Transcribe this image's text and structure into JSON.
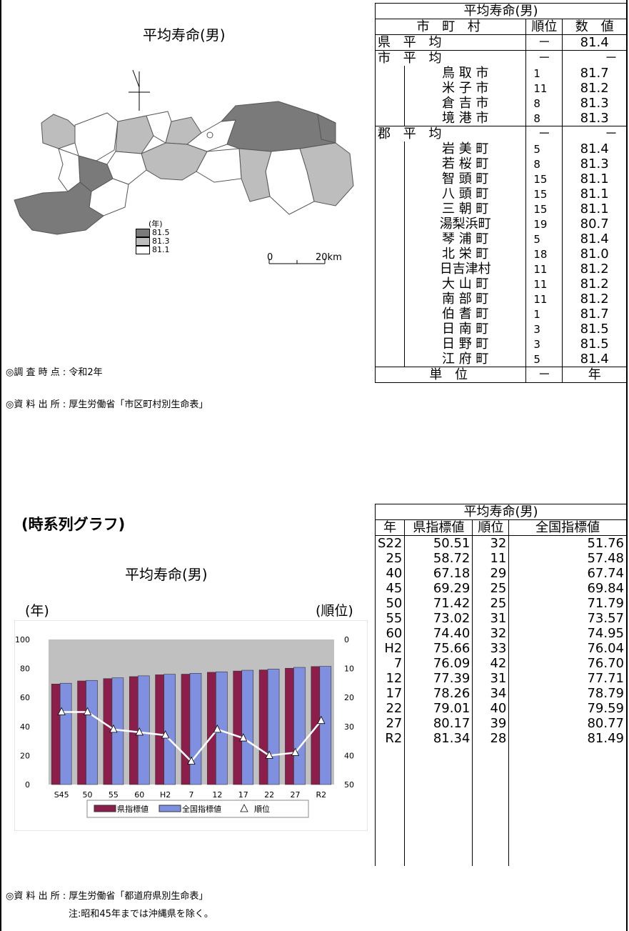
{
  "map_section": {
    "title": "平均寿命(男)",
    "legend_unit": "(年)",
    "legend": [
      {
        "label": "81.5",
        "color": "#7a7a7a"
      },
      {
        "label": "81.3",
        "color": "#bdbdbd"
      },
      {
        "label": "81.1",
        "color": "#ffffff"
      }
    ],
    "scale_zero": "0",
    "scale_km": "20km",
    "survey_label": "◎調 査 時 点 : 令和2年",
    "source_label": "◎資 料 出 所 : 厚生労働省「市区町村別生命表」"
  },
  "table1": {
    "title": "平均寿命(男)",
    "headers": [
      "市 町 村",
      "順位",
      "数　値"
    ],
    "pref_avg": {
      "label": "県 平 均",
      "rank": "－",
      "value": "81.4"
    },
    "city_avg": {
      "label": "市 平 均",
      "rank": "－",
      "value": "－"
    },
    "cities": [
      {
        "name": "鳥 取 市",
        "rank": "1",
        "value": "81.7"
      },
      {
        "name": "米 子 市",
        "rank": "11",
        "value": "81.2"
      },
      {
        "name": "倉 吉 市",
        "rank": "8",
        "value": "81.3"
      },
      {
        "name": "境 港 市",
        "rank": "8",
        "value": "81.3"
      }
    ],
    "county_avg": {
      "label": "郡 平 均",
      "rank": "－",
      "value": "－"
    },
    "towns": [
      {
        "name": "岩 美 町",
        "rank": "5",
        "value": "81.4"
      },
      {
        "name": "若 桜 町",
        "rank": "8",
        "value": "81.3"
      },
      {
        "name": "智 頭 町",
        "rank": "15",
        "value": "81.1"
      },
      {
        "name": "八 頭 町",
        "rank": "15",
        "value": "81.1"
      },
      {
        "name": "三 朝 町",
        "rank": "15",
        "value": "81.1"
      },
      {
        "name": "湯梨浜町",
        "rank": "19",
        "value": "80.7"
      },
      {
        "name": "琴 浦 町",
        "rank": "5",
        "value": "81.4"
      },
      {
        "name": "北 栄 町",
        "rank": "18",
        "value": "81.0"
      },
      {
        "name": "日吉津村",
        "rank": "11",
        "value": "81.2"
      },
      {
        "name": "大 山 町",
        "rank": "11",
        "value": "81.2"
      },
      {
        "name": "南 部 町",
        "rank": "11",
        "value": "81.2"
      },
      {
        "name": "伯 耆 町",
        "rank": "1",
        "value": "81.7"
      },
      {
        "name": "日 南 町",
        "rank": "3",
        "value": "81.5"
      },
      {
        "name": "日 野 町",
        "rank": "3",
        "value": "81.5"
      },
      {
        "name": "江 府 町",
        "rank": "5",
        "value": "81.4"
      }
    ],
    "unit": {
      "label": "単 位",
      "rank": "－",
      "value": "年"
    }
  },
  "ts_section": {
    "heading": "(時系列グラフ)",
    "chart_title": "平均寿命(男)",
    "left_unit": "(年)",
    "right_unit": "(順位)",
    "source_label": "◎資 料 出 所 : 厚生労働省「都道府県別生命表」",
    "note_label": "注:昭和45年までは沖縄県を除く。"
  },
  "table2": {
    "title": "平均寿命(男)",
    "headers": [
      "年",
      "県指標値",
      "順位",
      "全国指標値"
    ],
    "rows": [
      [
        "S22",
        "50.51",
        "32",
        "51.76"
      ],
      [
        "25",
        "58.72",
        "11",
        "57.48"
      ],
      [
        "40",
        "67.18",
        "29",
        "67.74"
      ],
      [
        "45",
        "69.29",
        "25",
        "69.84"
      ],
      [
        "50",
        "71.42",
        "25",
        "71.79"
      ],
      [
        "55",
        "73.02",
        "31",
        "73.57"
      ],
      [
        "60",
        "74.40",
        "32",
        "74.95"
      ],
      [
        "H2",
        "75.66",
        "33",
        "76.04"
      ],
      [
        "7",
        "76.09",
        "42",
        "76.70"
      ],
      [
        "12",
        "77.39",
        "31",
        "77.71"
      ],
      [
        "17",
        "78.26",
        "34",
        "78.79"
      ],
      [
        "22",
        "79.01",
        "40",
        "79.59"
      ],
      [
        "27",
        "80.17",
        "39",
        "80.77"
      ],
      [
        "R2",
        "81.34",
        "28",
        "81.49"
      ]
    ]
  },
  "colors": {
    "pref_bar": "#8b1e4a",
    "nat_bar": "#8090e0",
    "plot_bg": "#c0c0c0",
    "rank_line": "#ffffff"
  },
  "chart_data": {
    "type": "bar",
    "categories": [
      "S45",
      "50",
      "55",
      "60",
      "H2",
      "7",
      "12",
      "17",
      "22",
      "27",
      "R2"
    ],
    "series": [
      {
        "name": "県指標値",
        "values": [
          69.29,
          71.42,
          73.02,
          74.4,
          75.66,
          76.09,
          77.39,
          78.26,
          79.01,
          80.17,
          81.34
        ]
      },
      {
        "name": "全国指標値",
        "values": [
          69.84,
          71.79,
          73.57,
          74.95,
          76.04,
          76.7,
          77.71,
          78.79,
          79.59,
          80.77,
          81.49
        ]
      },
      {
        "name": "順位",
        "type": "line",
        "axis": "right",
        "values": [
          25,
          25,
          31,
          32,
          33,
          42,
          31,
          34,
          40,
          39,
          28
        ]
      }
    ],
    "ylim": [
      0,
      100
    ],
    "yticks": [
      0,
      20,
      40,
      60,
      80,
      100
    ],
    "y2lim": [
      0,
      50
    ],
    "y2ticks": [
      0,
      10,
      20,
      30,
      40,
      50
    ],
    "y2_reversed": true,
    "legend_position": "bottom"
  }
}
